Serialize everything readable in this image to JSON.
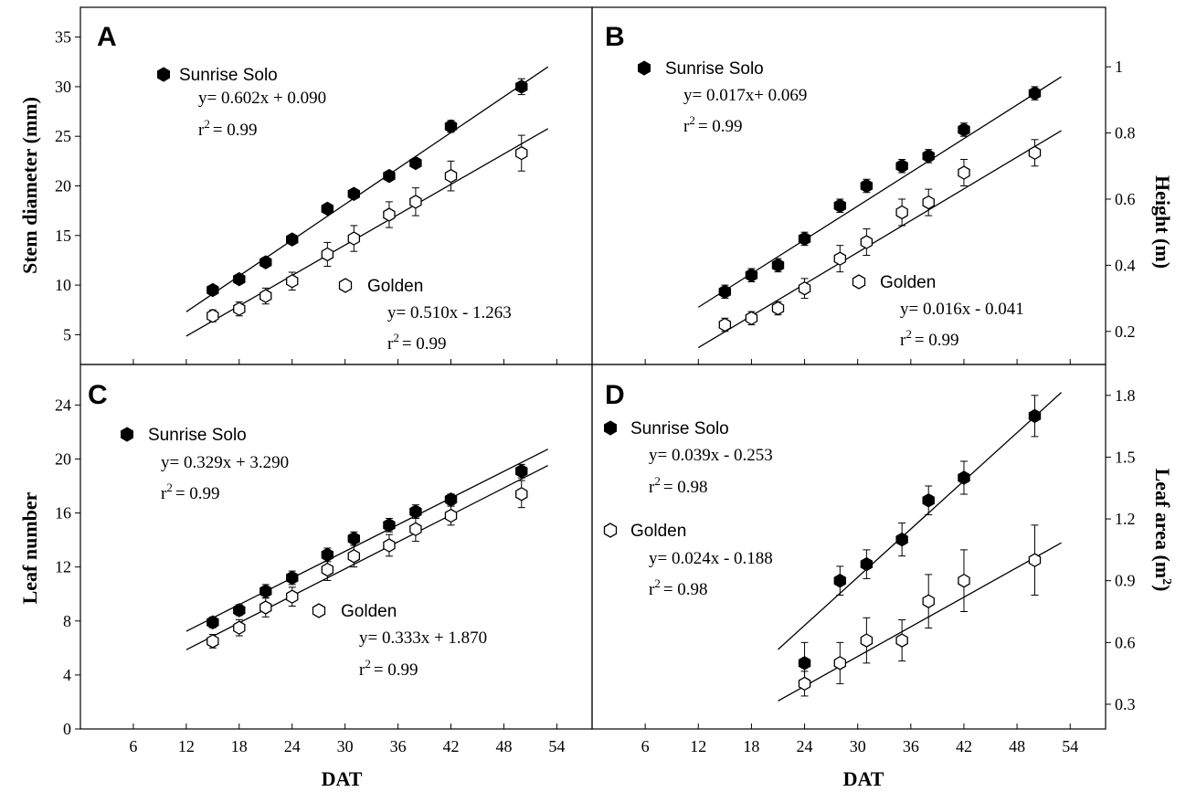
{
  "figure": {
    "x_axis_title": "DAT",
    "x_tick_labels": [
      "6",
      "12",
      "18",
      "24",
      "30",
      "36",
      "42",
      "48",
      "54"
    ]
  },
  "chart_data": [
    {
      "panel": "A",
      "type": "scatter",
      "ylabel": "Stem diameter (mm)",
      "y_axis_side": "left",
      "xlim": [
        0,
        58
      ],
      "ylim": [
        2,
        38
      ],
      "x_ticks": [
        6,
        12,
        18,
        24,
        30,
        36,
        42,
        48,
        54
      ],
      "y_ticks": [
        5,
        10,
        15,
        20,
        25,
        30,
        35
      ],
      "series": [
        {
          "name": "Sunrise Solo",
          "marker": "filled",
          "x": [
            15,
            18,
            21,
            24,
            28,
            31,
            35,
            38,
            42,
            50
          ],
          "y": [
            9.5,
            10.6,
            12.3,
            14.6,
            17.7,
            19.2,
            21.0,
            22.3,
            26.0,
            30.0
          ],
          "err": [
            0.4,
            0.4,
            0.4,
            0.4,
            0.4,
            0.4,
            0.4,
            0.4,
            0.6,
            0.8
          ],
          "fit": {
            "slope": 0.602,
            "intercept": 0.09,
            "x_range": [
              12,
              53
            ]
          },
          "equation": "y= 0.602x + 0.090",
          "r2_value": "= 0.99"
        },
        {
          "name": "Golden",
          "marker": "open",
          "x": [
            15,
            18,
            21,
            24,
            28,
            31,
            35,
            38,
            42,
            50
          ],
          "y": [
            6.9,
            7.6,
            8.9,
            10.4,
            13.1,
            14.7,
            17.1,
            18.4,
            21.0,
            23.3
          ],
          "err": [
            0.6,
            0.7,
            0.8,
            0.9,
            1.2,
            1.3,
            1.3,
            1.4,
            1.5,
            1.8
          ],
          "fit": {
            "slope": 0.51,
            "intercept": -1.263,
            "x_range": [
              12,
              53
            ]
          },
          "equation": "y= 0.510x - 1.263",
          "r2_value": "= 0.99"
        }
      ]
    },
    {
      "panel": "B",
      "type": "scatter",
      "ylabel": "Height (m)",
      "y_axis_side": "right",
      "xlim": [
        0,
        58
      ],
      "ylim": [
        0.1,
        1.18
      ],
      "x_ticks": [
        6,
        12,
        18,
        24,
        30,
        36,
        42,
        48,
        54
      ],
      "y_ticks": [
        0.2,
        0.4,
        0.6,
        0.8,
        1.0
      ],
      "series": [
        {
          "name": "Sunrise Solo",
          "marker": "filled",
          "x": [
            15,
            18,
            21,
            24,
            28,
            31,
            35,
            38,
            42,
            50
          ],
          "y": [
            0.32,
            0.37,
            0.4,
            0.48,
            0.58,
            0.64,
            0.7,
            0.73,
            0.81,
            0.92
          ],
          "err": [
            0.02,
            0.02,
            0.02,
            0.02,
            0.02,
            0.02,
            0.02,
            0.02,
            0.02,
            0.02
          ],
          "fit": {
            "slope": 0.017,
            "intercept": 0.069,
            "x_range": [
              12,
              53
            ]
          },
          "equation": "y= 0.017x+ 0.069",
          "r2_value": "= 0.99"
        },
        {
          "name": "Golden",
          "marker": "open",
          "x": [
            15,
            18,
            21,
            24,
            28,
            31,
            35,
            38,
            42,
            50
          ],
          "y": [
            0.22,
            0.24,
            0.27,
            0.33,
            0.42,
            0.47,
            0.56,
            0.59,
            0.68,
            0.74
          ],
          "err": [
            0.02,
            0.02,
            0.02,
            0.03,
            0.04,
            0.04,
            0.04,
            0.04,
            0.04,
            0.04
          ],
          "fit": {
            "slope": 0.016,
            "intercept": -0.041,
            "x_range": [
              12,
              53
            ]
          },
          "equation": "y= 0.016x - 0.041",
          "r2_value": "= 0.99"
        }
      ]
    },
    {
      "panel": "C",
      "type": "scatter",
      "ylabel": "Leaf number",
      "y_axis_side": "left",
      "xlim": [
        0,
        58
      ],
      "ylim": [
        0,
        27
      ],
      "x_ticks": [
        6,
        12,
        18,
        24,
        30,
        36,
        42,
        48,
        54
      ],
      "y_ticks": [
        0,
        4,
        8,
        12,
        16,
        20,
        24
      ],
      "series": [
        {
          "name": "Sunrise Solo",
          "marker": "filled",
          "x": [
            15,
            18,
            21,
            24,
            28,
            31,
            35,
            38,
            42,
            50
          ],
          "y": [
            7.9,
            8.8,
            10.2,
            11.2,
            12.9,
            14.1,
            15.1,
            16.1,
            17.0,
            19.1
          ],
          "err": [
            0.4,
            0.4,
            0.5,
            0.5,
            0.5,
            0.5,
            0.5,
            0.5,
            0.4,
            0.5
          ],
          "fit": {
            "slope": 0.329,
            "intercept": 3.29,
            "x_range": [
              12,
              53
            ]
          },
          "equation": "y= 0.329x + 3.290",
          "r2_value": "= 0.99"
        },
        {
          "name": "Golden",
          "marker": "open",
          "x": [
            15,
            18,
            21,
            24,
            28,
            31,
            35,
            38,
            42,
            50
          ],
          "y": [
            6.5,
            7.5,
            9.0,
            9.8,
            11.8,
            12.8,
            13.6,
            14.8,
            15.8,
            17.4
          ],
          "err": [
            0.5,
            0.6,
            0.7,
            0.7,
            0.8,
            0.8,
            0.8,
            0.9,
            0.7,
            1.0
          ],
          "fit": {
            "slope": 0.333,
            "intercept": 1.87,
            "x_range": [
              12,
              53
            ]
          },
          "equation": "y= 0.333x + 1.870",
          "r2_value": "= 0.99"
        }
      ]
    },
    {
      "panel": "D",
      "type": "scatter",
      "ylabel": "Leaf area (m",
      "ylabel_superscript": "2",
      "ylabel_suffix": ")",
      "y_axis_side": "right",
      "xlim": [
        0,
        58
      ],
      "ylim": [
        0.18,
        1.95
      ],
      "x_ticks": [
        6,
        12,
        18,
        24,
        30,
        36,
        42,
        48,
        54
      ],
      "y_ticks": [
        0.3,
        0.6,
        0.9,
        1.2,
        1.5,
        1.8
      ],
      "series": [
        {
          "name": "Sunrise Solo",
          "marker": "filled",
          "x": [
            24,
            28,
            31,
            35,
            38,
            42,
            50
          ],
          "y": [
            0.5,
            0.9,
            0.98,
            1.1,
            1.29,
            1.4,
            1.7
          ],
          "err": [
            0.1,
            0.07,
            0.07,
            0.08,
            0.07,
            0.08,
            0.1
          ],
          "fit": {
            "slope": 0.039,
            "intercept": -0.253,
            "x_range": [
              21,
              53
            ]
          },
          "equation": "y= 0.039x - 0.253",
          "r2_value": "= 0.98"
        },
        {
          "name": "Golden",
          "marker": "open",
          "x": [
            24,
            28,
            31,
            35,
            38,
            42,
            50
          ],
          "y": [
            0.4,
            0.5,
            0.61,
            0.61,
            0.8,
            0.9,
            1.0
          ],
          "err": [
            0.06,
            0.1,
            0.11,
            0.1,
            0.13,
            0.15,
            0.17
          ],
          "fit": {
            "slope": 0.024,
            "intercept": -0.188,
            "x_range": [
              21,
              53
            ]
          },
          "equation": "y= 0.024x - 0.188",
          "r2_value": "= 0.98"
        }
      ]
    }
  ]
}
